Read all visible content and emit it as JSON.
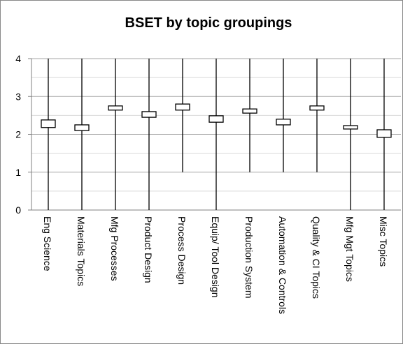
{
  "chart_data": {
    "type": "candlestick",
    "title": "BSET by topic groupings",
    "categories": [
      "Eng Science",
      "Materials Topics",
      "Mfg Processes",
      "Product Design",
      "Process Design",
      "Equip/ Tool Design",
      "Production System",
      "Automation & Controls",
      "Quality & CI Topics",
      "Mfg Mgt Topics",
      "Misc Topics"
    ],
    "high": [
      4,
      4,
      4,
      4,
      4,
      4,
      4,
      4,
      4,
      4,
      4
    ],
    "low": [
      0,
      0,
      0,
      0,
      1,
      0,
      1,
      1,
      1,
      0,
      0
    ],
    "open": [
      2.38,
      2.25,
      2.75,
      2.6,
      2.8,
      2.49,
      2.67,
      2.4,
      2.75,
      2.23,
      2.12
    ],
    "close": [
      2.18,
      2.1,
      2.64,
      2.45,
      2.64,
      2.32,
      2.56,
      2.25,
      2.64,
      2.14,
      1.92
    ],
    "ylim": [
      0,
      4
    ],
    "yticks": [
      0,
      1,
      2,
      3,
      4
    ],
    "minor_yticks": [
      0.5,
      1.5,
      2.5,
      3.5
    ],
    "grid": true,
    "color": "#000000",
    "box_fill": "#ffffff"
  }
}
